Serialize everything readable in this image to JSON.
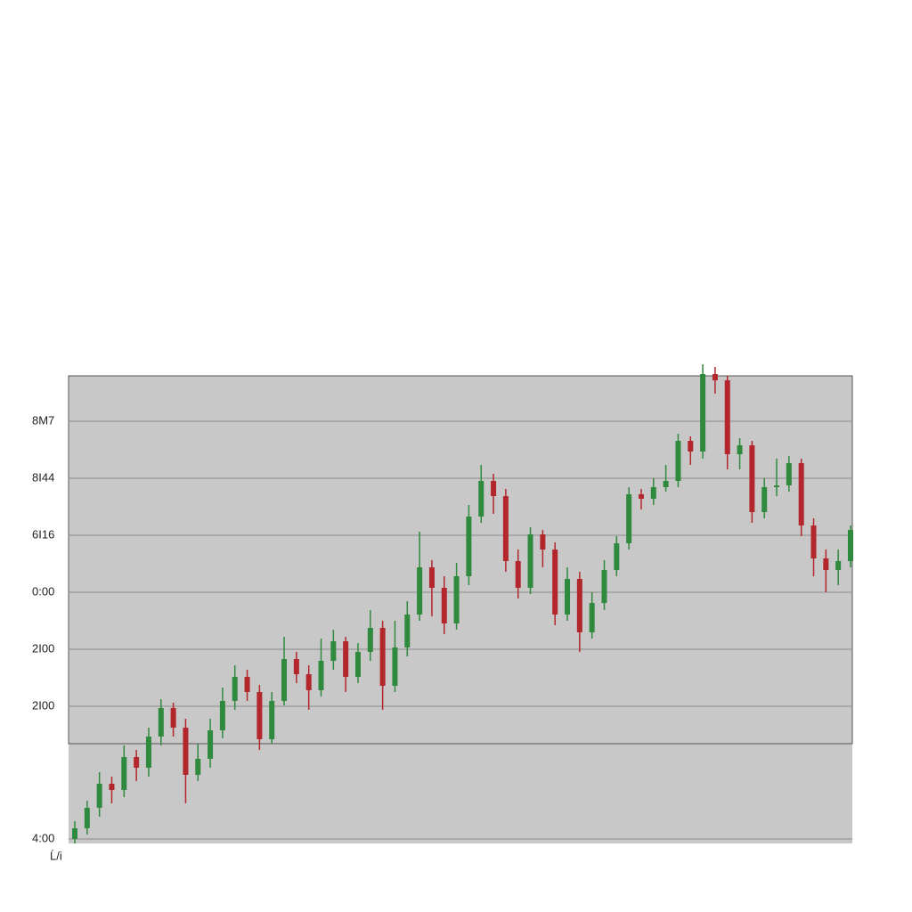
{
  "chart_data": {
    "type": "candlestick",
    "ylim": [
      0,
      525
    ],
    "yticks": [
      {
        "value": 474,
        "label": "8M7"
      },
      {
        "value": 410,
        "label": "8I44"
      },
      {
        "value": 346,
        "label": "6I16"
      },
      {
        "value": 282,
        "label": "0:00"
      },
      {
        "value": 218,
        "label": "2I00"
      },
      {
        "value": 154,
        "label": "2I00"
      },
      {
        "value": 5,
        "label": "4:00"
      }
    ],
    "x_label": "Ĺ/i",
    "grid": true,
    "up_color": "#2f8a3e",
    "down_color": "#b3262c",
    "candles": [
      [
        5,
        25,
        0,
        17
      ],
      [
        17,
        48,
        10,
        40
      ],
      [
        40,
        80,
        30,
        67
      ],
      [
        67,
        75,
        45,
        60
      ],
      [
        60,
        110,
        52,
        97
      ],
      [
        97,
        105,
        70,
        85
      ],
      [
        85,
        130,
        75,
        120
      ],
      [
        120,
        162,
        110,
        152
      ],
      [
        152,
        158,
        120,
        130
      ],
      [
        130,
        140,
        45,
        77
      ],
      [
        77,
        112,
        70,
        95
      ],
      [
        95,
        140,
        85,
        127
      ],
      [
        127,
        175,
        118,
        160
      ],
      [
        160,
        200,
        150,
        187
      ],
      [
        187,
        195,
        160,
        170
      ],
      [
        170,
        178,
        105,
        117
      ],
      [
        117,
        170,
        112,
        160
      ],
      [
        160,
        232,
        155,
        207
      ],
      [
        207,
        215,
        180,
        190
      ],
      [
        190,
        200,
        150,
        172
      ],
      [
        172,
        230,
        165,
        205
      ],
      [
        205,
        240,
        195,
        227
      ],
      [
        227,
        232,
        170,
        187
      ],
      [
        187,
        225,
        180,
        215
      ],
      [
        215,
        262,
        205,
        242
      ],
      [
        242,
        250,
        150,
        177
      ],
      [
        177,
        250,
        170,
        220
      ],
      [
        220,
        272,
        210,
        257
      ],
      [
        257,
        350,
        250,
        310
      ],
      [
        310,
        318,
        255,
        287
      ],
      [
        287,
        300,
        235,
        247
      ],
      [
        247,
        315,
        240,
        300
      ],
      [
        300,
        380,
        290,
        367
      ],
      [
        367,
        425,
        360,
        407
      ],
      [
        407,
        415,
        370,
        390
      ],
      [
        390,
        398,
        305,
        317
      ],
      [
        317,
        330,
        275,
        287
      ],
      [
        287,
        355,
        280,
        347
      ],
      [
        347,
        352,
        310,
        330
      ],
      [
        330,
        338,
        245,
        257
      ],
      [
        257,
        310,
        250,
        297
      ],
      [
        297,
        305,
        215,
        237
      ],
      [
        237,
        282,
        230,
        270
      ],
      [
        270,
        318,
        262,
        307
      ],
      [
        307,
        345,
        300,
        337
      ],
      [
        337,
        400,
        330,
        392
      ],
      [
        392,
        398,
        375,
        387
      ],
      [
        387,
        410,
        380,
        400
      ],
      [
        400,
        425,
        395,
        407
      ],
      [
        407,
        460,
        400,
        452
      ],
      [
        452,
        457,
        425,
        440
      ],
      [
        440,
        538,
        432,
        527
      ],
      [
        527,
        535,
        505,
        520
      ],
      [
        520,
        525,
        420,
        437
      ],
      [
        437,
        455,
        420,
        447
      ],
      [
        447,
        452,
        360,
        372
      ],
      [
        372,
        410,
        365,
        400
      ],
      [
        400,
        432,
        390,
        402
      ],
      [
        402,
        435,
        395,
        427
      ],
      [
        427,
        432,
        345,
        357
      ],
      [
        357,
        365,
        300,
        320
      ],
      [
        320,
        330,
        282,
        307
      ],
      [
        307,
        330,
        290,
        317
      ],
      [
        317,
        357,
        310,
        352
      ]
    ]
  }
}
